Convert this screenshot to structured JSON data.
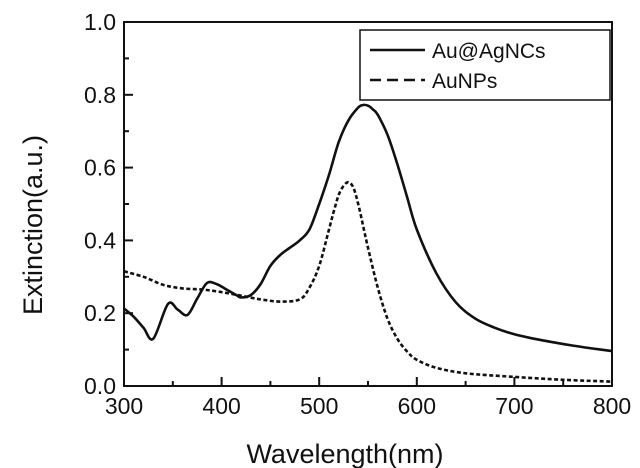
{
  "chart_data": {
    "type": "line",
    "title": "",
    "xlabel": "Wavelength(nm)",
    "ylabel": "Extinction(a.u.)",
    "xlim": [
      300,
      800
    ],
    "ylim": [
      0.0,
      1.0
    ],
    "x_ticks": [
      "300",
      "400",
      "500",
      "600",
      "700",
      "800"
    ],
    "y_ticks": [
      "0.0",
      "0.2",
      "0.4",
      "0.6",
      "0.8",
      "1.0"
    ],
    "grid": false,
    "legend_position": "top-right",
    "series": [
      {
        "name": "Au@AgNCs",
        "style": "solid",
        "color": "#111111",
        "x": [
          300,
          310,
          320,
          330,
          345,
          355,
          365,
          375,
          385,
          395,
          405,
          415,
          420,
          430,
          440,
          450,
          460,
          470,
          480,
          490,
          500,
          510,
          520,
          530,
          540,
          545,
          550,
          555,
          560,
          570,
          580,
          590,
          600,
          620,
          640,
          660,
          680,
          700,
          720,
          740,
          760,
          780,
          800
        ],
        "y": [
          0.213,
          0.19,
          0.16,
          0.13,
          0.225,
          0.21,
          0.195,
          0.24,
          0.283,
          0.28,
          0.265,
          0.25,
          0.243,
          0.25,
          0.28,
          0.33,
          0.36,
          0.38,
          0.4,
          0.43,
          0.5,
          0.58,
          0.67,
          0.73,
          0.765,
          0.772,
          0.77,
          0.76,
          0.745,
          0.69,
          0.61,
          0.52,
          0.43,
          0.31,
          0.23,
          0.185,
          0.16,
          0.142,
          0.13,
          0.12,
          0.111,
          0.103,
          0.096
        ]
      },
      {
        "name": "AuNPs",
        "style": "dashed",
        "color": "#111111",
        "x": [
          300,
          320,
          340,
          360,
          380,
          400,
          420,
          440,
          460,
          480,
          490,
          500,
          510,
          515,
          520,
          525,
          530,
          535,
          540,
          545,
          550,
          560,
          570,
          580,
          590,
          600,
          620,
          650,
          700,
          750,
          800
        ],
        "y": [
          0.315,
          0.3,
          0.278,
          0.268,
          0.265,
          0.258,
          0.248,
          0.238,
          0.232,
          0.238,
          0.27,
          0.33,
          0.43,
          0.48,
          0.525,
          0.55,
          0.56,
          0.545,
          0.5,
          0.44,
          0.38,
          0.27,
          0.185,
          0.13,
          0.095,
          0.072,
          0.05,
          0.035,
          0.025,
          0.017,
          0.012
        ]
      }
    ]
  }
}
